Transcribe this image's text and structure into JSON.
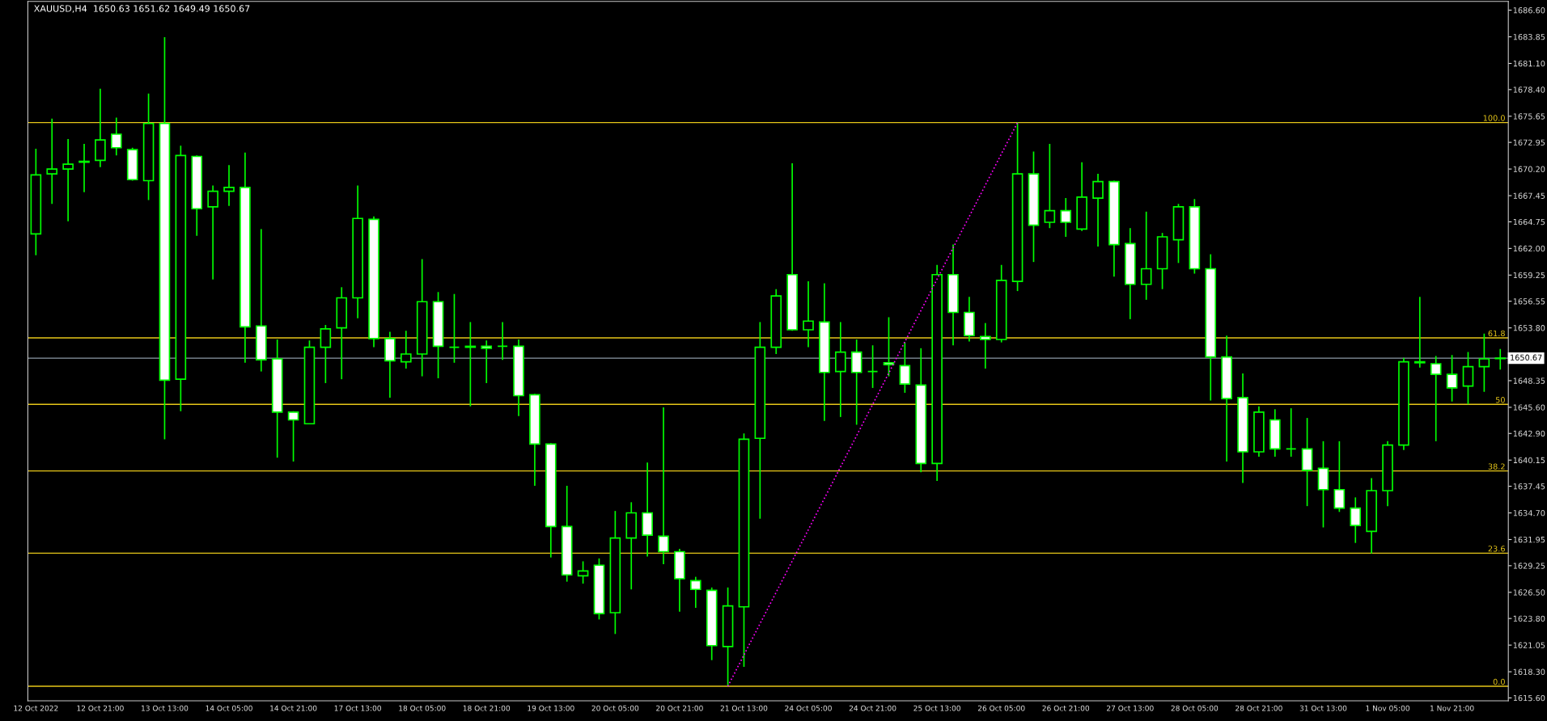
{
  "chart_data": {
    "type": "candlestick",
    "title": "XAUUSD,H4  1650.63 1651.62 1649.49 1650.67",
    "color": "#00ff00",
    "categories": [
      "12 Oct 2022",
      null,
      null,
      null,
      "12 Oct 21:00",
      null,
      null,
      null,
      "13 Oct 13:00",
      null,
      null,
      null,
      "14 Oct 05:00",
      null,
      null,
      null,
      "14 Oct 21:00",
      null,
      null,
      null,
      "17 Oct 13:00",
      null,
      null,
      null,
      "18 Oct 05:00",
      null,
      null,
      null,
      "18 Oct 21:00",
      null,
      null,
      null,
      "19 Oct 13:00",
      null,
      null,
      null,
      "20 Oct 05:00",
      null,
      null,
      null,
      "20 Oct 21:00",
      null,
      null,
      null,
      "21 Oct 13:00",
      null,
      null,
      null,
      "24 Oct 05:00",
      null,
      null,
      null,
      "24 Oct 21:00",
      null,
      null,
      null,
      "25 Oct 13:00",
      null,
      null,
      null,
      "26 Oct 05:00",
      null,
      null,
      null,
      "26 Oct 21:00",
      null,
      null,
      null,
      "27 Oct 13:00",
      null,
      null,
      null,
      "28 Oct 05:00",
      null,
      null,
      null,
      "28 Oct 21:00",
      null,
      null,
      null,
      "31 Oct 13:00",
      null,
      null,
      null,
      "1 Nov 05:00",
      null,
      null,
      null,
      "1 Nov 21:00",
      null,
      null,
      null
    ],
    "ohlc": [
      [
        1663.5,
        1672.3,
        1661.3,
        1669.6
      ],
      [
        1669.7,
        1675.4,
        1666.6,
        1670.2
      ],
      [
        1670.2,
        1673.3,
        1664.8,
        1670.7
      ],
      [
        1670.9,
        1672.8,
        1667.8,
        1671.0
      ],
      [
        1671.1,
        1678.5,
        1670.4,
        1673.2
      ],
      [
        1673.8,
        1675.5,
        1671.6,
        1672.4
      ],
      [
        1672.2,
        1672.4,
        1669.0,
        1669.1
      ],
      [
        1669.0,
        1678.0,
        1667.0,
        1674.9
      ],
      [
        1674.9,
        1683.8,
        1642.3,
        1648.4
      ],
      [
        1648.5,
        1672.6,
        1645.2,
        1671.6
      ],
      [
        1671.5,
        1671.6,
        1663.3,
        1666.1
      ],
      [
        1666.3,
        1668.5,
        1658.8,
        1667.9
      ],
      [
        1667.9,
        1670.6,
        1666.4,
        1668.3
      ],
      [
        1668.3,
        1671.9,
        1650.2,
        1653.9
      ],
      [
        1654.0,
        1664.0,
        1649.3,
        1650.5
      ],
      [
        1650.6,
        1652.6,
        1640.4,
        1645.1
      ],
      [
        1645.1,
        1645.2,
        1640.0,
        1644.3
      ],
      [
        1643.9,
        1652.5,
        1643.9,
        1651.8
      ],
      [
        1651.8,
        1654.1,
        1648.1,
        1653.7
      ],
      [
        1653.8,
        1658.0,
        1648.5,
        1656.9
      ],
      [
        1656.9,
        1668.5,
        1654.8,
        1665.1
      ],
      [
        1665.0,
        1665.3,
        1651.8,
        1652.7
      ],
      [
        1652.7,
        1653.4,
        1646.6,
        1650.4
      ],
      [
        1650.3,
        1653.5,
        1649.6,
        1651.1
      ],
      [
        1651.1,
        1660.9,
        1648.8,
        1656.5
      ],
      [
        1656.5,
        1657.5,
        1648.6,
        1651.9
      ],
      [
        1651.8,
        1657.3,
        1650.2,
        1651.8
      ],
      [
        1651.9,
        1654.4,
        1645.7,
        1651.8
      ],
      [
        1651.9,
        1652.5,
        1648.1,
        1651.7
      ],
      [
        1651.9,
        1654.4,
        1650.5,
        1651.9
      ],
      [
        1651.9,
        1652.6,
        1644.7,
        1646.8
      ],
      [
        1646.9,
        1647.0,
        1637.5,
        1641.8
      ],
      [
        1641.8,
        1641.9,
        1630.1,
        1633.3
      ],
      [
        1633.3,
        1637.5,
        1627.6,
        1628.3
      ],
      [
        1628.2,
        1629.7,
        1627.4,
        1628.7
      ],
      [
        1629.3,
        1630.0,
        1623.7,
        1624.3
      ],
      [
        1624.4,
        1634.9,
        1622.2,
        1632.1
      ],
      [
        1632.1,
        1635.8,
        1626.8,
        1634.7
      ],
      [
        1634.7,
        1639.9,
        1630.2,
        1632.4
      ],
      [
        1632.3,
        1645.6,
        1629.4,
        1630.7
      ],
      [
        1630.7,
        1631.0,
        1624.5,
        1627.9
      ],
      [
        1627.7,
        1628.1,
        1624.9,
        1626.8
      ],
      [
        1626.7,
        1627.0,
        1619.5,
        1621.0
      ],
      [
        1620.9,
        1627.0,
        1616.8,
        1625.1
      ],
      [
        1625.0,
        1642.9,
        1618.8,
        1642.3
      ],
      [
        1642.4,
        1654.4,
        1634.1,
        1651.8
      ],
      [
        1651.8,
        1657.8,
        1651.1,
        1657.1
      ],
      [
        1659.3,
        1670.8,
        1653.5,
        1653.6
      ],
      [
        1653.6,
        1658.6,
        1651.8,
        1654.5
      ],
      [
        1654.4,
        1658.4,
        1644.2,
        1649.2
      ],
      [
        1649.3,
        1654.4,
        1644.6,
        1651.3
      ],
      [
        1651.3,
        1652.6,
        1643.8,
        1649.2
      ],
      [
        1649.3,
        1652.0,
        1647.6,
        1649.3
      ],
      [
        1650.2,
        1654.9,
        1648.8,
        1650.0
      ],
      [
        1649.9,
        1652.3,
        1647.1,
        1648.0
      ],
      [
        1647.9,
        1651.7,
        1638.9,
        1639.8
      ],
      [
        1639.8,
        1660.3,
        1638.0,
        1659.3
      ],
      [
        1659.3,
        1662.4,
        1652.0,
        1655.4
      ],
      [
        1655.4,
        1657.0,
        1652.4,
        1653.0
      ],
      [
        1652.9,
        1654.3,
        1649.6,
        1652.6
      ],
      [
        1652.6,
        1660.3,
        1652.3,
        1658.7
      ],
      [
        1658.6,
        1675.0,
        1657.6,
        1669.7
      ],
      [
        1669.7,
        1672.0,
        1660.6,
        1664.4
      ],
      [
        1664.7,
        1672.8,
        1664.1,
        1665.9
      ],
      [
        1665.9,
        1667.2,
        1663.2,
        1664.7
      ],
      [
        1664.0,
        1670.9,
        1663.8,
        1667.3
      ],
      [
        1667.2,
        1669.7,
        1662.2,
        1668.9
      ],
      [
        1668.9,
        1669.0,
        1659.1,
        1662.4
      ],
      [
        1662.5,
        1664.1,
        1654.7,
        1658.3
      ],
      [
        1658.3,
        1665.8,
        1656.7,
        1659.9
      ],
      [
        1659.9,
        1663.6,
        1657.8,
        1663.2
      ],
      [
        1662.9,
        1666.6,
        1660.5,
        1666.3
      ],
      [
        1666.3,
        1667.1,
        1659.4,
        1659.9
      ],
      [
        1659.9,
        1661.4,
        1646.3,
        1650.8
      ],
      [
        1650.8,
        1653.0,
        1640.0,
        1646.5
      ],
      [
        1646.6,
        1649.1,
        1637.8,
        1641.0
      ],
      [
        1641.0,
        1645.7,
        1640.5,
        1645.1
      ],
      [
        1644.3,
        1645.4,
        1640.5,
        1641.3
      ],
      [
        1641.3,
        1645.5,
        1640.5,
        1641.3
      ],
      [
        1641.3,
        1644.5,
        1635.4,
        1639.1
      ],
      [
        1639.3,
        1642.1,
        1633.2,
        1637.1
      ],
      [
        1637.1,
        1642.1,
        1634.8,
        1635.2
      ],
      [
        1635.2,
        1636.3,
        1631.6,
        1633.4
      ],
      [
        1632.8,
        1638.3,
        1630.5,
        1637.0
      ],
      [
        1637.0,
        1642.1,
        1635.4,
        1641.7
      ],
      [
        1641.7,
        1650.7,
        1641.2,
        1650.3
      ],
      [
        1650.3,
        1657.0,
        1649.7,
        1650.2
      ],
      [
        1650.1,
        1650.9,
        1642.1,
        1649.0
      ],
      [
        1649.0,
        1651.0,
        1646.2,
        1647.6
      ],
      [
        1647.8,
        1651.3,
        1645.9,
        1649.8
      ],
      [
        1649.8,
        1653.2,
        1647.2,
        1650.6
      ],
      [
        1650.63,
        1651.62,
        1649.49,
        1650.67
      ]
    ],
    "series": [
      {
        "type": "line",
        "color": "#ff00ff",
        "line_style": "dotted",
        "values": [
          null,
          null,
          null,
          null,
          null,
          null,
          null,
          null,
          null,
          null,
          null,
          null,
          null,
          null,
          null,
          null,
          null,
          null,
          null,
          null,
          null,
          null,
          null,
          null,
          null,
          null,
          null,
          null,
          null,
          null,
          null,
          null,
          null,
          null,
          null,
          null,
          null,
          null,
          null,
          null,
          null,
          null,
          null,
          1616.8,
          null,
          null,
          null,
          null,
          null,
          null,
          null,
          null,
          null,
          null,
          null,
          null,
          null,
          null,
          null,
          null,
          null,
          1675.0,
          null,
          null,
          null,
          null,
          null,
          null,
          null,
          null,
          null,
          null,
          null,
          null,
          null,
          null,
          null,
          null,
          null,
          null,
          null,
          null,
          null,
          null,
          null,
          null,
          null,
          null,
          null,
          null,
          null,
          null
        ]
      }
    ],
    "ref_lines": [
      {
        "axis": "y",
        "value": 1675.0,
        "color": "#e6c619"
      },
      {
        "axis": "y",
        "value": 1652.77,
        "color": "#e6c619"
      },
      {
        "axis": "y",
        "value": 1645.9,
        "color": "#e6c619"
      },
      {
        "axis": "y",
        "value": 1639.03,
        "color": "#e6c619"
      },
      {
        "axis": "y",
        "value": 1630.54,
        "color": "#e6c619"
      },
      {
        "axis": "y",
        "value": 1616.8,
        "color": "#e6c619"
      },
      {
        "axis": "y",
        "value": 1650.67,
        "label": "1650.67",
        "color": "#8c9aa6"
      }
    ],
    "annotations": [
      {
        "text": "100.0",
        "y": 1675.0
      },
      {
        "text": "61.8",
        "y": 1652.77
      },
      {
        "text": "50",
        "y": 1645.9
      },
      {
        "text": "38.2",
        "y": 1639.03
      },
      {
        "text": "23.6",
        "y": 1630.54
      },
      {
        "text": "0.0",
        "y": 1616.8
      }
    ],
    "ylim": [
      1615.3,
      1687.5
    ],
    "yticks": [
      {
        "value": 1686.6,
        "label": "1686.60"
      },
      {
        "value": 1683.85,
        "label": "1683.85"
      },
      {
        "value": 1681.1,
        "label": "1681.10"
      },
      {
        "value": 1678.4,
        "label": "1678.40"
      },
      {
        "value": 1675.65,
        "label": "1675.65"
      },
      {
        "value": 1672.95,
        "label": "1672.95"
      },
      {
        "value": 1670.2,
        "label": "1670.20"
      },
      {
        "value": 1667.45,
        "label": "1667.45"
      },
      {
        "value": 1664.75,
        "label": "1664.75"
      },
      {
        "value": 1662.0,
        "label": "1662.00"
      },
      {
        "value": 1659.25,
        "label": "1659.25"
      },
      {
        "value": 1656.55,
        "label": "1656.55"
      },
      {
        "value": 1653.8,
        "label": "1653.80"
      },
      {
        "value": 1648.35,
        "label": "1648.35"
      },
      {
        "value": 1645.6,
        "label": "1645.60"
      },
      {
        "value": 1642.9,
        "label": "1642.90"
      },
      {
        "value": 1640.15,
        "label": "1640.15"
      },
      {
        "value": 1637.45,
        "label": "1637.45"
      },
      {
        "value": 1634.7,
        "label": "1634.70"
      },
      {
        "value": 1631.95,
        "label": "1631.95"
      },
      {
        "value": 1629.25,
        "label": "1629.25"
      },
      {
        "value": 1626.5,
        "label": "1626.50"
      },
      {
        "value": 1623.8,
        "label": "1623.80"
      },
      {
        "value": 1621.05,
        "label": "1621.05"
      },
      {
        "value": 1618.3,
        "label": "1618.30"
      },
      {
        "value": 1615.6,
        "label": "1615.60"
      }
    ],
    "grid": false,
    "legend": false
  }
}
